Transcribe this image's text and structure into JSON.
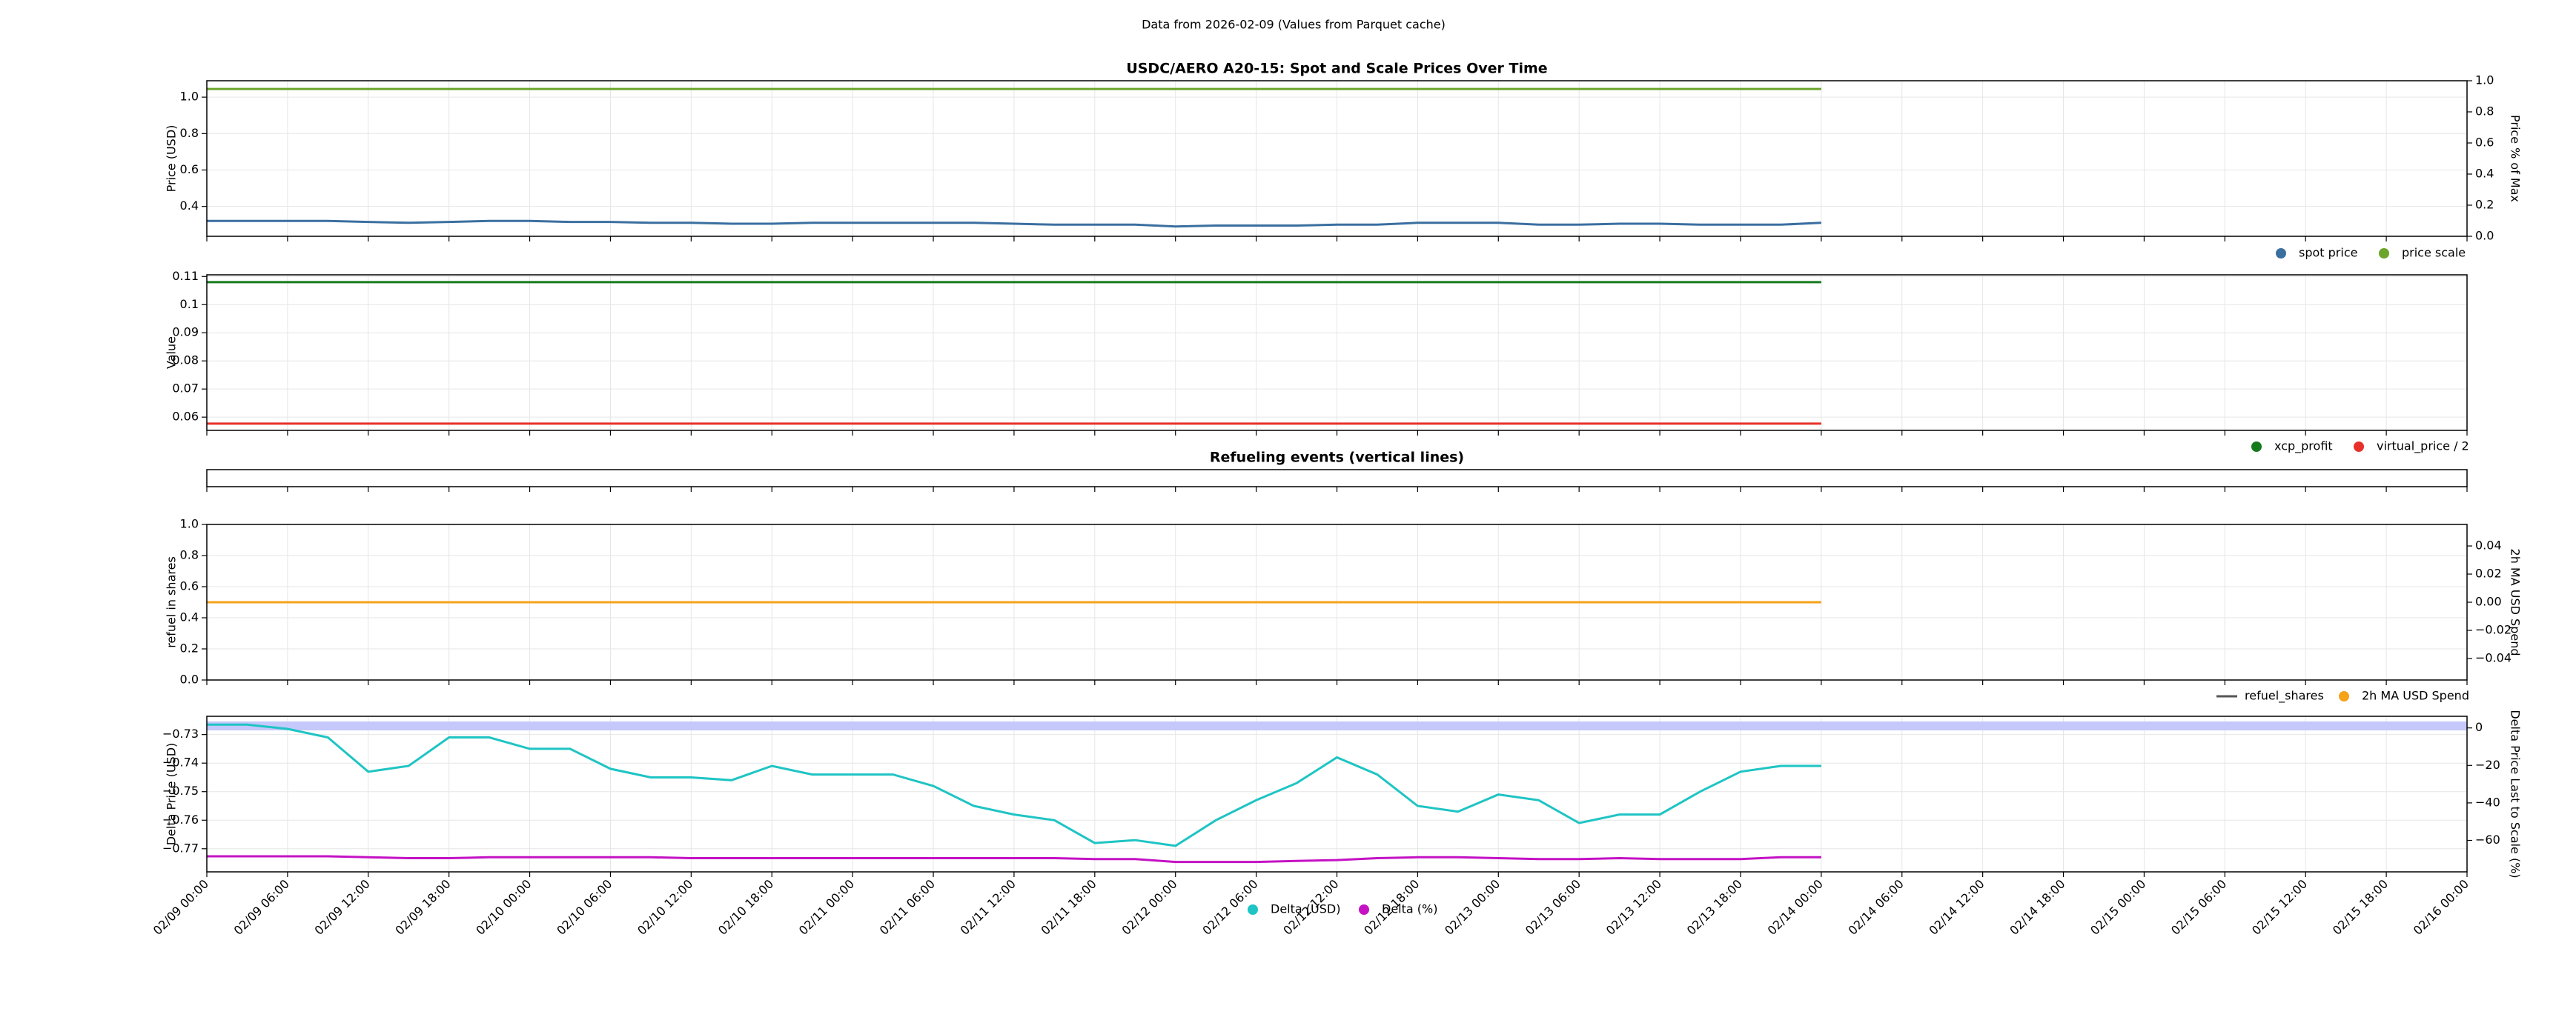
{
  "suptitle": "Data from 2026-02-09 (Values from Parquet cache)",
  "chart_data": [
    {
      "type": "line",
      "title": "USDC/AERO A20-15: Spot and Scale Prices Over Time",
      "ylabel": "Price (USD)",
      "y2label": "Price % of Max",
      "grid": true,
      "ylim": [
        0.236,
        1.09
      ],
      "yticks": [
        0.4,
        0.6,
        0.8,
        {
          "value": 1.0,
          "label": "1.0"
        }
      ],
      "y2lim": [
        0,
        1
      ],
      "y2ticks": [
        {
          "value": 0,
          "label": "0.0"
        },
        0.2,
        0.4,
        0.6,
        0.8,
        {
          "value": 1,
          "label": "1.0"
        }
      ],
      "x": [
        "02/09 00:00",
        "02/09 03:00",
        "02/09 06:00",
        "02/09 09:00",
        "02/09 12:00",
        "02/09 15:00",
        "02/09 18:00",
        "02/09 21:00",
        "02/10 00:00",
        "02/10 03:00",
        "02/10 06:00",
        "02/10 09:00",
        "02/10 12:00",
        "02/10 15:00",
        "02/10 18:00",
        "02/10 21:00",
        "02/11 00:00",
        "02/11 03:00",
        "02/11 06:00",
        "02/11 09:00",
        "02/11 12:00",
        "02/11 15:00",
        "02/11 18:00",
        "02/11 21:00",
        "02/12 00:00",
        "02/12 03:00",
        "02/12 06:00",
        "02/12 09:00",
        "02/12 12:00",
        "02/12 15:00",
        "02/12 18:00",
        "02/12 21:00",
        "02/13 00:00",
        "02/13 03:00",
        "02/13 06:00",
        "02/13 09:00",
        "02/13 12:00",
        "02/13 15:00",
        "02/13 18:00",
        "02/13 21:00",
        "02/14 00:00"
      ],
      "series": [
        {
          "name": "spot price",
          "color": "#3b6fa0",
          "values": [
            0.32,
            0.32,
            0.32,
            0.32,
            0.315,
            0.31,
            0.315,
            0.32,
            0.32,
            0.315,
            0.315,
            0.31,
            0.31,
            0.305,
            0.305,
            0.31,
            0.31,
            0.31,
            0.31,
            0.31,
            0.305,
            0.3,
            0.3,
            0.3,
            0.29,
            0.295,
            0.295,
            0.295,
            0.3,
            0.3,
            0.31,
            0.31,
            0.31,
            0.3,
            0.3,
            0.305,
            0.305,
            0.3,
            0.3,
            0.3,
            0.31
          ]
        },
        {
          "name": "price scale",
          "color": "#6ba52c",
          "values": [
            1.045,
            1.045,
            1.045,
            1.045,
            1.045,
            1.045,
            1.045,
            1.045,
            1.045,
            1.045,
            1.045,
            1.045,
            1.045,
            1.045,
            1.045,
            1.045,
            1.045,
            1.045,
            1.045,
            1.045,
            1.045,
            1.045,
            1.045,
            1.045,
            1.045,
            1.045,
            1.045,
            1.045,
            1.045,
            1.045,
            1.045,
            1.045,
            1.045,
            1.045,
            1.045,
            1.045,
            1.045,
            1.045,
            1.045,
            1.045,
            1.045
          ]
        }
      ]
    },
    {
      "type": "line",
      "ylabel": "Value",
      "grid": true,
      "ylim": [
        0.0553,
        0.1106
      ],
      "yticks": [
        0.06,
        0.07,
        0.08,
        0.09,
        0.1,
        0.11
      ],
      "x": [
        "02/09 00:00",
        "02/14 00:00"
      ],
      "series": [
        {
          "name": "xcp_profit",
          "color": "#157a1d",
          "values": [
            0.108,
            0.108
          ]
        },
        {
          "name": "virtual_price / 2",
          "color": "#e8302a",
          "values": [
            0.0577,
            0.0577
          ]
        }
      ]
    },
    {
      "type": "line",
      "title": "Refueling events (vertical lines)",
      "grid": false,
      "series": []
    },
    {
      "type": "line",
      "ylabel": "refuel in shares",
      "y2label": "2h MA USD Spend",
      "grid": true,
      "ylim": [
        0,
        1
      ],
      "yticks": [
        {
          "value": 0,
          "label": "0.0"
        },
        0.2,
        0.4,
        0.6,
        0.8,
        {
          "value": 1,
          "label": "1.0"
        }
      ],
      "y2lim": [
        -0.0553,
        0.0553
      ],
      "y2ticks": [
        {
          "value": -0.04,
          "label": "−0.04"
        },
        {
          "value": -0.02,
          "label": "−0.02"
        },
        {
          "value": 0,
          "label": "0.00"
        },
        0.02,
        0.04
      ],
      "x": [
        "02/09 00:00",
        "02/14 00:00"
      ],
      "series": [
        {
          "name": "refuel_shares",
          "color": "#555555",
          "marker": "line"
        },
        {
          "name": "2h MA USD Spend",
          "color": "#f5a318",
          "axis": "y2",
          "values": [
            0,
            0
          ]
        }
      ]
    },
    {
      "type": "line",
      "ylabel": "Delta Price (USD)",
      "y2label": "Delta Price Last to Scale (%)",
      "grid": true,
      "ylim": [
        -0.7781,
        -0.7236
      ],
      "yticks": [
        {
          "value": -0.77,
          "label": "−0.77"
        },
        {
          "value": -0.76,
          "label": "−0.76"
        },
        {
          "value": -0.75,
          "label": "−0.75"
        },
        {
          "value": -0.74,
          "label": "−0.74"
        },
        {
          "value": -0.73,
          "label": "−0.73"
        }
      ],
      "y2lim": [
        -76.8,
        6.2
      ],
      "y2ticks": [
        {
          "value": -60,
          "label": "−60"
        },
        {
          "value": -40,
          "label": "−40"
        },
        {
          "value": -20,
          "label": "−20"
        },
        0
      ],
      "xlim": [
        "02/09 00:00",
        "02/16 00:00"
      ],
      "xticks": [
        "02/09 00:00",
        "02/09 06:00",
        "02/09 12:00",
        "02/09 18:00",
        "02/10 00:00",
        "02/10 06:00",
        "02/10 12:00",
        "02/10 18:00",
        "02/11 00:00",
        "02/11 06:00",
        "02/11 12:00",
        "02/11 18:00",
        "02/12 00:00",
        "02/12 06:00",
        "02/12 12:00",
        "02/12 18:00",
        "02/13 00:00",
        "02/13 06:00",
        "02/13 12:00",
        "02/13 18:00",
        "02/14 00:00",
        "02/14 06:00",
        "02/14 12:00",
        "02/14 18:00",
        "02/15 00:00",
        "02/15 06:00",
        "02/15 12:00",
        "02/15 18:00",
        "02/16 00:00"
      ],
      "x": [
        "02/09 00:00",
        "02/09 03:00",
        "02/09 06:00",
        "02/09 09:00",
        "02/09 12:00",
        "02/09 15:00",
        "02/09 18:00",
        "02/09 21:00",
        "02/10 00:00",
        "02/10 03:00",
        "02/10 06:00",
        "02/10 09:00",
        "02/10 12:00",
        "02/10 15:00",
        "02/10 18:00",
        "02/10 21:00",
        "02/11 00:00",
        "02/11 03:00",
        "02/11 06:00",
        "02/11 09:00",
        "02/11 12:00",
        "02/11 15:00",
        "02/11 18:00",
        "02/11 21:00",
        "02/12 00:00",
        "02/12 03:00",
        "02/12 06:00",
        "02/12 09:00",
        "02/12 12:00",
        "02/12 15:00",
        "02/12 18:00",
        "02/12 21:00",
        "02/13 00:00",
        "02/13 03:00",
        "02/13 06:00",
        "02/13 09:00",
        "02/13 12:00",
        "02/13 15:00",
        "02/13 18:00",
        "02/13 21:00",
        "02/14 00:00"
      ],
      "series": [
        {
          "name": "Delta (USD)",
          "color": "#1fc4c4",
          "values": [
            -0.7265,
            -0.7265,
            -0.728,
            -0.731,
            -0.743,
            -0.741,
            -0.731,
            -0.731,
            -0.735,
            -0.735,
            -0.742,
            -0.745,
            -0.745,
            -0.746,
            -0.741,
            -0.744,
            -0.744,
            -0.744,
            -0.748,
            -0.755,
            -0.758,
            -0.76,
            -0.768,
            -0.767,
            -0.769,
            -0.76,
            -0.753,
            -0.747,
            -0.738,
            -0.744,
            -0.755,
            -0.757,
            -0.751,
            -0.753,
            -0.761,
            -0.758,
            -0.758,
            -0.75,
            -0.743,
            -0.741,
            -0.741
          ]
        },
        {
          "name": "Delta (%)",
          "color": "#c412c4",
          "axis": "y2",
          "values": [
            -68.5,
            -68.5,
            -68.5,
            -68.5,
            -69,
            -69.5,
            -69.5,
            -69,
            -69,
            -69,
            -69,
            -69,
            -69.5,
            -69.5,
            -69.5,
            -69.5,
            -69.5,
            -69.5,
            -69.5,
            -69.5,
            -69.5,
            -69.5,
            -70,
            -70,
            -71.5,
            -71.5,
            -71.5,
            -71,
            -70.5,
            -69.5,
            -69,
            -69,
            -69.5,
            -70,
            -70,
            -69.5,
            -70,
            -70,
            -70,
            -69,
            -69
          ]
        }
      ]
    }
  ]
}
